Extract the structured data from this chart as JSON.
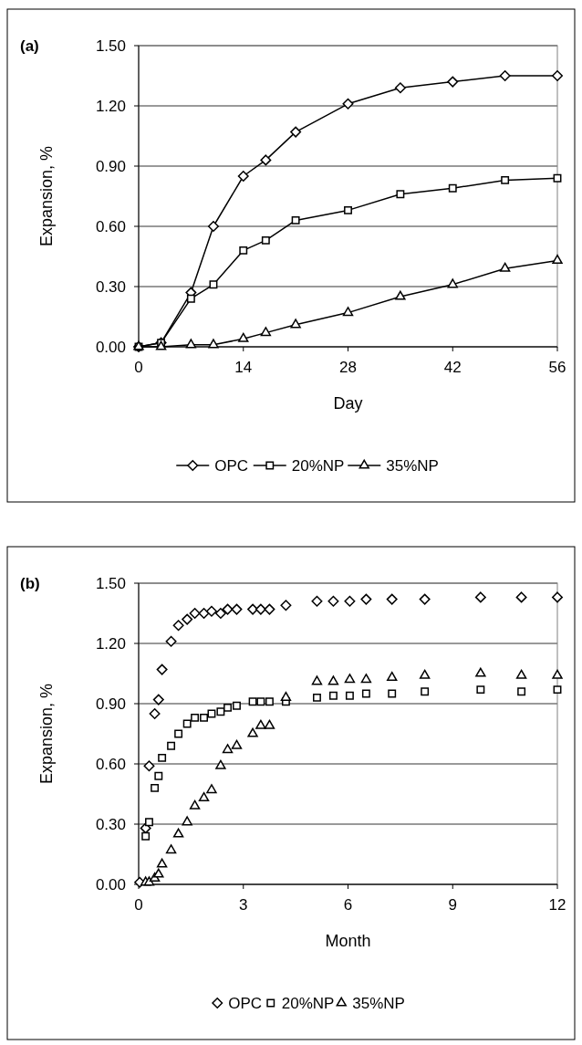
{
  "chart_data": [
    {
      "type": "line",
      "title": "(a)",
      "xlabel": "Day",
      "ylabel": "Expansion, %",
      "xlim": [
        0,
        56
      ],
      "xticks": [
        0,
        14,
        28,
        42,
        56
      ],
      "ylim": [
        0,
        1.5
      ],
      "yticks": [
        {
          "value": 0,
          "label": "0.00"
        },
        {
          "value": 0.3,
          "label": "0.30"
        },
        {
          "value": 0.6,
          "label": "0.60"
        },
        {
          "value": 0.9,
          "label": "0.90"
        },
        {
          "value": 1.2,
          "label": "1.20"
        },
        {
          "value": 1.5,
          "label": "1.50"
        }
      ],
      "grid": "y",
      "legend": "bottom",
      "line_style": "solid",
      "x": [
        0,
        3,
        7,
        10,
        14,
        17,
        21,
        28,
        35,
        42,
        49,
        56
      ],
      "series": [
        {
          "name": "OPC",
          "color": "#000000",
          "marker": "diamond",
          "values": [
            0,
            0.02,
            0.27,
            0.6,
            0.85,
            0.93,
            1.07,
            1.21,
            1.29,
            1.32,
            1.35,
            1.35
          ]
        },
        {
          "name": "20%NP",
          "color": "#000000",
          "marker": "square",
          "values": [
            0,
            0.02,
            0.24,
            0.31,
            0.48,
            0.53,
            0.63,
            0.68,
            0.76,
            0.79,
            0.83,
            0.84
          ]
        },
        {
          "name": "35%NP",
          "color": "#000000",
          "marker": "triangle",
          "values": [
            0,
            0,
            0.01,
            0.01,
            0.04,
            0.07,
            0.11,
            0.17,
            0.25,
            0.31,
            0.39,
            0.43
          ]
        }
      ]
    },
    {
      "type": "scatter",
      "title": "(b)",
      "xlabel": "Month",
      "ylabel": "Expansion, %",
      "xlim": [
        0,
        12
      ],
      "xticks": [
        0,
        3,
        6,
        9,
        12
      ],
      "ylim": [
        0,
        1.5
      ],
      "yticks": [
        {
          "value": 0,
          "label": "0.00"
        },
        {
          "value": 0.3,
          "label": "0.30"
        },
        {
          "value": 0.6,
          "label": "0.60"
        },
        {
          "value": 0.9,
          "label": "0.90"
        },
        {
          "value": 1.2,
          "label": "1.20"
        },
        {
          "value": 1.5,
          "label": "1.50"
        }
      ],
      "grid": "y",
      "legend": "bottom",
      "x": [
        0.03,
        0.2,
        0.3,
        0.46,
        0.57,
        0.67,
        0.93,
        1.14,
        1.39,
        1.61,
        1.87,
        2.09,
        2.35,
        2.55,
        2.81,
        3.27,
        3.5,
        3.75,
        4.22,
        5.11,
        5.58,
        6.05,
        6.52,
        7.26,
        8.2,
        9.8,
        10.97,
        12
      ],
      "series": [
        {
          "name": "OPC",
          "color": "#000000",
          "marker": "diamond",
          "values": [
            0.01,
            0.28,
            0.59,
            0.85,
            0.92,
            1.07,
            1.21,
            1.29,
            1.32,
            1.35,
            1.35,
            1.36,
            1.35,
            1.37,
            1.37,
            1.37,
            1.37,
            1.37,
            1.39,
            1.41,
            1.41,
            1.41,
            1.42,
            1.42,
            1.42,
            1.43,
            1.43,
            1.43
          ]
        },
        {
          "name": "20%NP",
          "color": "#000000",
          "marker": "square",
          "values": [
            null,
            0.24,
            0.31,
            0.48,
            0.54,
            0.63,
            0.69,
            0.75,
            0.8,
            0.83,
            0.83,
            0.85,
            0.86,
            0.88,
            0.89,
            0.91,
            0.91,
            0.91,
            0.91,
            0.93,
            0.94,
            0.94,
            0.95,
            0.95,
            0.96,
            0.97,
            0.96,
            0.97
          ]
        },
        {
          "name": "35%NP",
          "color": "#000000",
          "marker": "triangle",
          "values": [
            null,
            0.01,
            0.01,
            0.03,
            0.05,
            0.1,
            0.17,
            0.25,
            0.31,
            0.39,
            0.43,
            0.47,
            0.59,
            0.67,
            0.69,
            0.75,
            0.79,
            0.79,
            0.93,
            1.01,
            1.01,
            1.02,
            1.02,
            1.03,
            1.04,
            1.05,
            1.04,
            1.04
          ]
        }
      ]
    }
  ]
}
